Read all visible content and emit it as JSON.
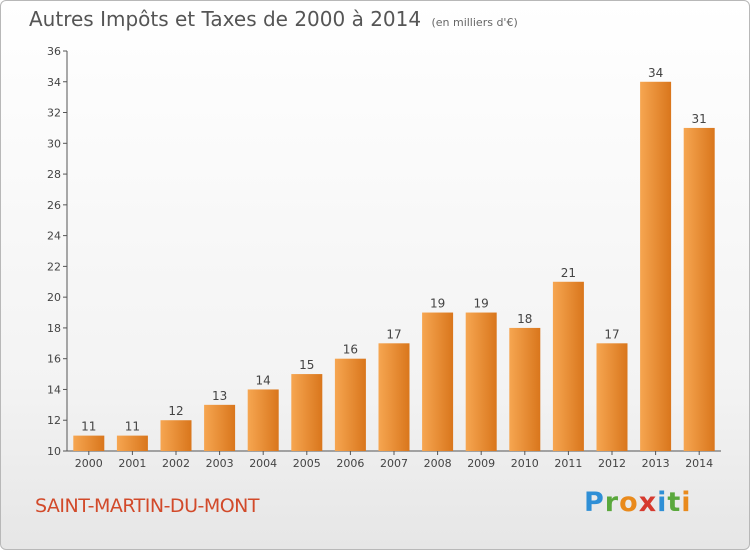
{
  "header": {
    "title": "Autres Impôts et Taxes de 2000 à 2014",
    "unit": "(en milliers d'€)"
  },
  "footer": {
    "town": "SAINT-MARTIN-DU-MONT",
    "logo_letters": [
      "P",
      "r",
      "o",
      "x",
      "i",
      "t",
      "i"
    ],
    "logo_colors": [
      "#2f8fd6",
      "#5aa83c",
      "#e98a1c",
      "#d63a2f",
      "#2f8fd6",
      "#5aa83c",
      "#e98a1c"
    ]
  },
  "chart_data": {
    "type": "bar",
    "title": "Autres Impôts et Taxes de 2000 à 2014",
    "xlabel": "",
    "ylabel": "",
    "categories": [
      "2000",
      "2001",
      "2002",
      "2003",
      "2004",
      "2005",
      "2006",
      "2007",
      "2008",
      "2009",
      "2010",
      "2011",
      "2012",
      "2013",
      "2014"
    ],
    "values": [
      11,
      11,
      12,
      13,
      14,
      15,
      16,
      17,
      19,
      19,
      18,
      21,
      17,
      34,
      31
    ],
    "ylim": [
      10,
      36
    ],
    "yticks": [
      10,
      12,
      14,
      16,
      18,
      20,
      22,
      24,
      26,
      28,
      30,
      32,
      34,
      36
    ],
    "grid": false,
    "bar_color_light": "#f6a651",
    "bar_color_dark": "#d9761c",
    "axis_color": "#555555"
  }
}
